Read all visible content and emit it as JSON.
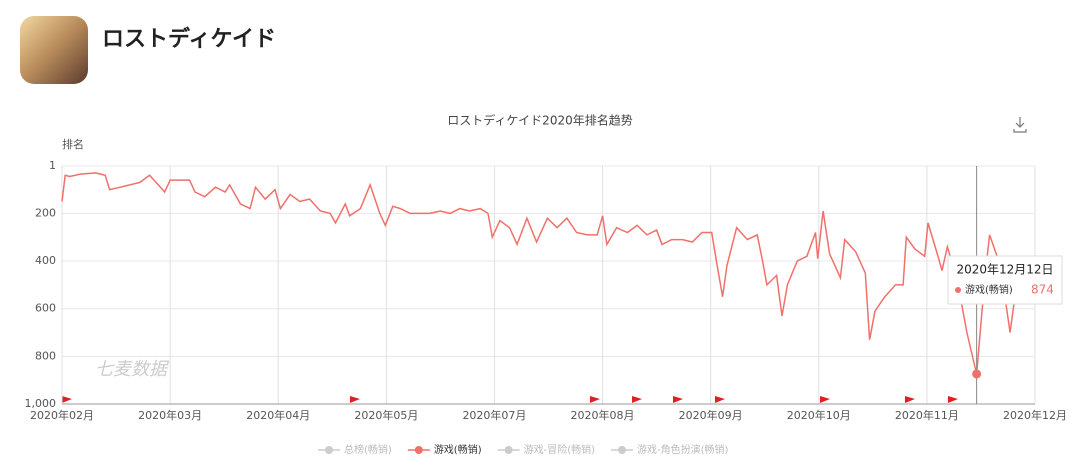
{
  "header": {
    "app_name": "ロストディケイド"
  },
  "chart_data": {
    "type": "line",
    "title": "ロストディケイド2020年排名趋势",
    "y_label": "排名",
    "watermark": "七麦数据",
    "x": [
      0,
      0.3,
      0.7,
      1.7,
      3.1,
      4.0,
      4.4,
      5.4,
      6.3,
      7.2,
      8.1,
      9.1,
      9.5,
      10.0,
      10.9,
      11.8,
      12.3,
      13.2,
      14.2,
      15.1,
      15.5,
      16.5,
      17.4,
      17.9,
      18.8,
      19.7,
      20.2,
      21.1,
      22.0,
      22.9,
      23.9,
      24.8,
      25.3,
      26.2,
      26.6,
      27.6,
      28.5,
      29.4,
      29.9,
      30.6,
      31.3,
      32.2,
      33.1,
      34.0,
      35.0,
      35.9,
      36.8,
      37.7,
      38.7,
      39.4,
      39.8,
      40.5,
      41.4,
      42.1,
      43.0,
      43.9,
      44.9,
      45.8,
      46.7,
      47.6,
      48.6,
      49.5,
      50.0,
      50.4,
      51.3,
      52.3,
      53.2,
      54.1,
      55.0,
      55.5,
      56.4,
      57.4,
      58.3,
      59.2,
      60.1,
      60.6,
      61.1,
      61.5,
      62.4,
      63.4,
      64.3,
      64.8,
      65.2,
      66.1,
      66.6,
      67.1,
      68.0,
      68.9,
      69.7,
      69.9,
      70.4,
      71.0,
      72.0,
      72.4,
      73.4,
      74.3,
      74.7,
      75.2,
      76.1,
      77.1,
      77.8,
      78.1,
      78.9,
      79.8,
      80.1,
      80.9,
      81.4,
      81.9,
      82.8,
      83.7,
      84.6,
      85.4,
      85.8,
      86.8,
      87.7,
      88.2
    ],
    "series": [
      {
        "name": "游戏(畅销)",
        "color": "#f0706a",
        "values": [
          150,
          40,
          45,
          35,
          30,
          40,
          100,
          90,
          80,
          70,
          40,
          90,
          110,
          60,
          60,
          60,
          110,
          130,
          90,
          110,
          80,
          160,
          180,
          90,
          140,
          100,
          180,
          120,
          150,
          140,
          190,
          200,
          240,
          160,
          210,
          180,
          80,
          200,
          250,
          170,
          180,
          200,
          200,
          200,
          190,
          200,
          180,
          190,
          180,
          200,
          300,
          230,
          260,
          330,
          220,
          320,
          220,
          260,
          220,
          280,
          290,
          290,
          210,
          330,
          260,
          280,
          250,
          290,
          270,
          330,
          310,
          310,
          320,
          280,
          280,
          420,
          550,
          420,
          260,
          310,
          290,
          400,
          500,
          460,
          630,
          500,
          400,
          380,
          280,
          390,
          190,
          370,
          470,
          310,
          360,
          450,
          730,
          610,
          550,
          500,
          500,
          300,
          350,
          380,
          240,
          360,
          440,
          340,
          480,
          700,
          874,
          450,
          290,
          420,
          700,
          530
        ]
      }
    ],
    "legend": [
      {
        "name": "总榜(畅销)",
        "active": false
      },
      {
        "name": "游戏(畅销)",
        "active": true
      },
      {
        "name": "游戏-冒险(畅销)",
        "active": false
      },
      {
        "name": "游戏-角色扮演(畅销)",
        "active": false
      }
    ],
    "tooltip": {
      "date": "2020年12月12日",
      "value": 874
    },
    "y_reversed": true,
    "ylim": [
      1,
      1000
    ],
    "yticks": [
      1,
      200,
      400,
      600,
      800,
      {
        "value": 1000,
        "label": "1,000"
      }
    ],
    "xlim": [
      0,
      90
    ],
    "xticks": [
      {
        "value": 0,
        "label": "2020年02月"
      },
      {
        "value": 10,
        "label": "2020年03月"
      },
      {
        "value": 20,
        "label": "2020年04月"
      },
      {
        "value": 30,
        "label": "2020年05月"
      },
      {
        "value": 40,
        "label": "2020年07月"
      },
      {
        "value": 50,
        "label": "2020年08月"
      },
      {
        "value": 60,
        "label": "2020年09月"
      },
      {
        "value": 70,
        "label": "2020年10月"
      },
      {
        "value": 80,
        "label": "2020年11月"
      },
      {
        "value": 90,
        "label": "2020年12月"
      }
    ],
    "grid": true
  }
}
